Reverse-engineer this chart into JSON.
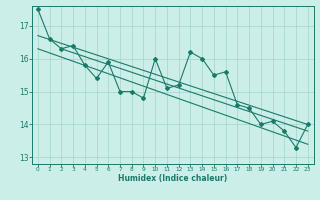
{
  "title": "",
  "xlabel": "Humidex (Indice chaleur)",
  "ylabel": "",
  "bg_color": "#cceee8",
  "grid_color": "#aad8d0",
  "line_color": "#1a7a6a",
  "xlim": [
    -0.5,
    23.5
  ],
  "ylim": [
    12.8,
    17.6
  ],
  "yticks": [
    13,
    14,
    15,
    16,
    17
  ],
  "xticks": [
    0,
    1,
    2,
    3,
    4,
    5,
    6,
    7,
    8,
    9,
    10,
    11,
    12,
    13,
    14,
    15,
    16,
    17,
    18,
    19,
    20,
    21,
    22,
    23
  ],
  "x": [
    0,
    1,
    2,
    3,
    4,
    5,
    6,
    7,
    8,
    9,
    10,
    11,
    12,
    13,
    14,
    15,
    16,
    17,
    18,
    19,
    20,
    21,
    22,
    23
  ],
  "y_main": [
    17.5,
    16.6,
    16.3,
    16.4,
    15.8,
    15.4,
    15.9,
    15.0,
    15.0,
    14.8,
    16.0,
    15.1,
    15.2,
    16.2,
    16.0,
    15.5,
    15.6,
    14.6,
    14.5,
    14.0,
    14.1,
    13.8,
    13.3,
    14.0
  ],
  "trend1_x": [
    0,
    23
  ],
  "trend1_y": [
    16.7,
    14.0
  ],
  "trend2_x": [
    0,
    23
  ],
  "trend2_y": [
    16.3,
    13.4
  ],
  "trend3_x": [
    2,
    23
  ],
  "trend3_y": [
    16.3,
    13.8
  ]
}
